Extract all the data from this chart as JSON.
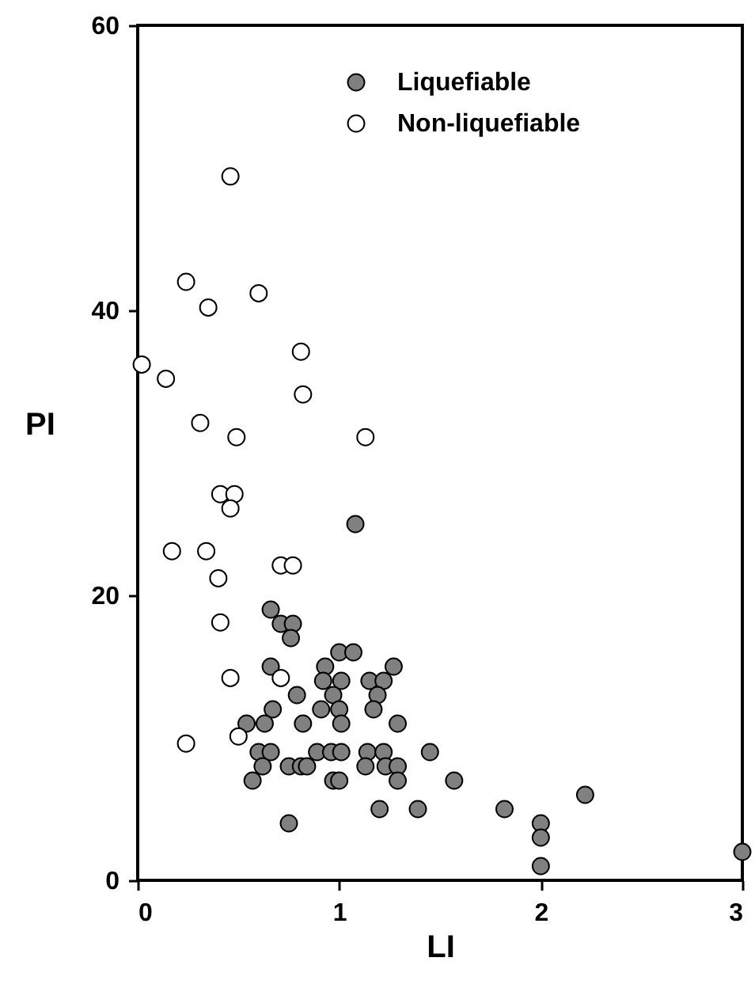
{
  "chart_data": {
    "type": "scatter",
    "xlabel": "LI",
    "ylabel": "PI",
    "xlim": [
      0,
      3
    ],
    "ylim": [
      0,
      60
    ],
    "xticks": [
      0,
      1,
      2,
      3
    ],
    "yticks": [
      0,
      20,
      40,
      60
    ],
    "legend": "top right",
    "marker": "circle",
    "series": [
      {
        "name": "Liquefiable",
        "color": "#808080",
        "x": [
          1.08,
          0.66,
          0.71,
          0.77,
          0.76,
          1.0,
          1.07,
          0.66,
          0.93,
          1.27,
          0.92,
          1.01,
          1.15,
          1.22,
          0.79,
          0.97,
          1.19,
          0.67,
          0.91,
          1.0,
          1.17,
          0.54,
          0.63,
          0.82,
          1.01,
          1.29,
          0.6,
          0.66,
          0.89,
          0.96,
          1.01,
          1.14,
          1.22,
          1.45,
          0.62,
          0.75,
          0.81,
          0.84,
          1.13,
          1.23,
          1.29,
          0.57,
          0.97,
          1.0,
          1.29,
          1.2,
          1.39,
          0.75,
          1.57,
          1.82,
          2.0,
          2.0,
          2.0,
          2.22,
          3.0
        ],
        "values": [
          25,
          19,
          18,
          18,
          17,
          16,
          16,
          15,
          15,
          15,
          14,
          14,
          14,
          14,
          13,
          13,
          13,
          12,
          12,
          12,
          12,
          11,
          11,
          11,
          11,
          11,
          9,
          9,
          9,
          9,
          9,
          9,
          9,
          9,
          8,
          8,
          8,
          8,
          8,
          8,
          8,
          7,
          7,
          7,
          7,
          5,
          5,
          4,
          7,
          5,
          4,
          3,
          1,
          6,
          2
        ]
      },
      {
        "name": "Non-liquefiable",
        "color": "#ffffff",
        "x": [
          0.46,
          0.24,
          0.35,
          0.6,
          0.81,
          0.02,
          0.14,
          0.82,
          0.31,
          0.49,
          1.13,
          0.41,
          0.48,
          0.46,
          0.17,
          0.34,
          0.71,
          0.77,
          0.4,
          0.41,
          0.46,
          0.71,
          0.5,
          0.24
        ],
        "values": [
          49.4,
          42,
          40.2,
          41.2,
          37.1,
          36.2,
          35.2,
          34.1,
          32.1,
          31.1,
          31.1,
          27.1,
          27.1,
          26.1,
          23.1,
          23.1,
          22.1,
          22.1,
          21.2,
          18.1,
          14.2,
          14.2,
          10.1,
          9.6
        ]
      }
    ]
  }
}
